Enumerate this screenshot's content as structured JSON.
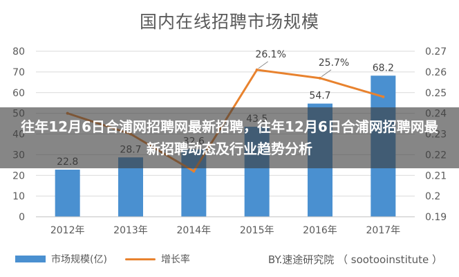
{
  "chart_data": {
    "type": "bar",
    "title": "国内在线招聘市场规模",
    "categories": [
      "2012年",
      "2013年",
      "2014年",
      "2015年",
      "2016年",
      "2017年"
    ],
    "series": [
      {
        "name": "市场规模(亿)",
        "type": "bar",
        "axis": "left",
        "values": [
          22.8,
          28.7,
          32.6,
          43.5,
          54.7,
          68.2
        ],
        "value_labels": [
          "22.8",
          "28.7",
          "32.6",
          "43.5",
          "54.7",
          "68.2"
        ],
        "color": "#4a90d0"
      },
      {
        "name": "增长率",
        "type": "line",
        "axis": "right",
        "values": [
          0.24,
          0.23,
          0.212,
          0.261,
          0.257,
          0.248
        ],
        "value_labels": [
          "",
          "",
          "",
          "26.1%",
          "25.7%",
          ""
        ],
        "color": "#e8822e"
      }
    ],
    "y_left": {
      "ylim": [
        0,
        80
      ],
      "ticks": [
        "0",
        "10",
        "20",
        "30",
        "40",
        "50",
        "60",
        "70",
        "80"
      ]
    },
    "y_right": {
      "ylim": [
        0.19,
        0.27
      ],
      "ticks": [
        "0.19",
        "0.2",
        "0.21",
        "0.22",
        "0.23",
        "0.24",
        "0.25",
        "0.26",
        "0.27"
      ]
    },
    "grid": true,
    "legend": "bottom-left"
  },
  "overlay": {
    "text": "往年12月6日合浦网招聘网最新招聘，往年12月6日合浦网招聘网最新招聘动态及行业趋势分析"
  },
  "watermark": "BY.速途研究院 （ sootooinstitute ）"
}
